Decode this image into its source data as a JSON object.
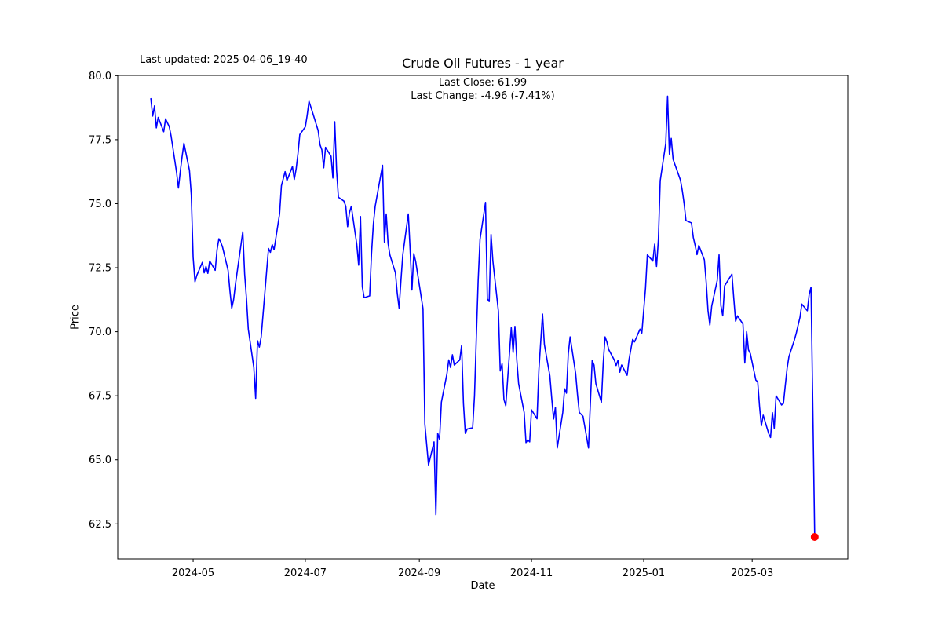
{
  "figure": {
    "annotation": "Last updated: 2025-04-06_19-40",
    "title": "Crude Oil Futures - 1 year",
    "subtitle_line1": "Last Close: 61.99",
    "subtitle_line2": "Last Change: -4.96 (-7.41%)",
    "xlabel": "Date",
    "ylabel": "Price",
    "last_close": "61.99",
    "last_change": "-4.96 (-7.41%)"
  },
  "chart_data": {
    "type": "line",
    "title": "Crude Oil Futures - 1 year",
    "xlabel": "Date",
    "ylabel": "Price",
    "legend": "none",
    "grid": false,
    "line_color": "#0000ff",
    "line_width": 1.6,
    "marker_color": "#ff0000",
    "axes_color": "#000000",
    "background_color": "#ffffff",
    "xlim": [
      "2024-03-21",
      "2025-04-22"
    ],
    "ylim": [
      61.13,
      80.01
    ],
    "yticks": [
      62.5,
      65.0,
      67.5,
      70.0,
      72.5,
      75.0,
      77.5,
      80.0
    ],
    "ytick_labels": [
      "62.5",
      "65.0",
      "67.5",
      "70.0",
      "72.5",
      "75.0",
      "77.5",
      "80.0"
    ],
    "xticks": [
      "2024-05-01",
      "2024-07-01",
      "2024-09-01",
      "2024-11-01",
      "2025-01-01",
      "2025-03-01"
    ],
    "xtick_labels": [
      "2024-05",
      "2024-07",
      "2024-09",
      "2024-11",
      "2025-01",
      "2025-03"
    ],
    "last_point": {
      "date": "2025-04-04",
      "value": 61.99
    },
    "series": [
      {
        "name": "price",
        "dates": [
          "2024-04-08",
          "2024-04-09",
          "2024-04-10",
          "2024-04-11",
          "2024-04-12",
          "2024-04-15",
          "2024-04-16",
          "2024-04-17",
          "2024-04-18",
          "2024-04-19",
          "2024-04-22",
          "2024-04-23",
          "2024-04-24",
          "2024-04-25",
          "2024-04-26",
          "2024-04-29",
          "2024-04-30",
          "2024-05-01",
          "2024-05-02",
          "2024-05-03",
          "2024-05-06",
          "2024-05-07",
          "2024-05-08",
          "2024-05-09",
          "2024-05-10",
          "2024-05-13",
          "2024-05-14",
          "2024-05-15",
          "2024-05-16",
          "2024-05-17",
          "2024-05-20",
          "2024-05-21",
          "2024-05-22",
          "2024-05-23",
          "2024-05-24",
          "2024-05-28",
          "2024-05-29",
          "2024-05-30",
          "2024-05-31",
          "2024-06-03",
          "2024-06-04",
          "2024-06-05",
          "2024-06-06",
          "2024-06-07",
          "2024-06-10",
          "2024-06-11",
          "2024-06-12",
          "2024-06-13",
          "2024-06-14",
          "2024-06-17",
          "2024-06-18",
          "2024-06-20",
          "2024-06-21",
          "2024-06-24",
          "2024-06-25",
          "2024-06-26",
          "2024-06-27",
          "2024-06-28",
          "2024-07-01",
          "2024-07-02",
          "2024-07-03",
          "2024-07-05",
          "2024-07-08",
          "2024-07-09",
          "2024-07-10",
          "2024-07-11",
          "2024-07-12",
          "2024-07-15",
          "2024-07-16",
          "2024-07-17",
          "2024-07-18",
          "2024-07-19",
          "2024-07-22",
          "2024-07-23",
          "2024-07-24",
          "2024-07-25",
          "2024-07-26",
          "2024-07-29",
          "2024-07-30",
          "2024-07-31",
          "2024-08-01",
          "2024-08-02",
          "2024-08-05",
          "2024-08-06",
          "2024-08-07",
          "2024-08-08",
          "2024-08-09",
          "2024-08-12",
          "2024-08-13",
          "2024-08-14",
          "2024-08-15",
          "2024-08-16",
          "2024-08-19",
          "2024-08-20",
          "2024-08-21",
          "2024-08-22",
          "2024-08-23",
          "2024-08-26",
          "2024-08-27",
          "2024-08-28",
          "2024-08-29",
          "2024-08-30",
          "2024-09-03",
          "2024-09-04",
          "2024-09-05",
          "2024-09-06",
          "2024-09-09",
          "2024-09-10",
          "2024-09-11",
          "2024-09-12",
          "2024-09-13",
          "2024-09-16",
          "2024-09-17",
          "2024-09-18",
          "2024-09-19",
          "2024-09-20",
          "2024-09-23",
          "2024-09-24",
          "2024-09-25",
          "2024-09-26",
          "2024-09-27",
          "2024-09-30",
          "2024-10-01",
          "2024-10-02",
          "2024-10-03",
          "2024-10-04",
          "2024-10-07",
          "2024-10-08",
          "2024-10-09",
          "2024-10-10",
          "2024-10-11",
          "2024-10-14",
          "2024-10-15",
          "2024-10-16",
          "2024-10-17",
          "2024-10-18",
          "2024-10-21",
          "2024-10-22",
          "2024-10-23",
          "2024-10-24",
          "2024-10-25",
          "2024-10-28",
          "2024-10-29",
          "2024-10-30",
          "2024-10-31",
          "2024-11-01",
          "2024-11-04",
          "2024-11-05",
          "2024-11-06",
          "2024-11-07",
          "2024-11-08",
          "2024-11-11",
          "2024-11-12",
          "2024-11-13",
          "2024-11-14",
          "2024-11-15",
          "2024-11-18",
          "2024-11-19",
          "2024-11-20",
          "2024-11-21",
          "2024-11-22",
          "2024-11-25",
          "2024-11-26",
          "2024-11-27",
          "2024-11-29",
          "2024-12-02",
          "2024-12-03",
          "2024-12-04",
          "2024-12-05",
          "2024-12-06",
          "2024-12-09",
          "2024-12-10",
          "2024-12-11",
          "2024-12-12",
          "2024-12-13",
          "2024-12-16",
          "2024-12-17",
          "2024-12-18",
          "2024-12-19",
          "2024-12-20",
          "2024-12-23",
          "2024-12-24",
          "2024-12-26",
          "2024-12-27",
          "2024-12-30",
          "2024-12-31",
          "2025-01-02",
          "2025-01-03",
          "2025-01-06",
          "2025-01-07",
          "2025-01-08",
          "2025-01-09",
          "2025-01-10",
          "2025-01-13",
          "2025-01-14",
          "2025-01-15",
          "2025-01-16",
          "2025-01-17",
          "2025-01-21",
          "2025-01-22",
          "2025-01-23",
          "2025-01-24",
          "2025-01-27",
          "2025-01-28",
          "2025-01-29",
          "2025-01-30",
          "2025-01-31",
          "2025-02-03",
          "2025-02-04",
          "2025-02-05",
          "2025-02-06",
          "2025-02-07",
          "2025-02-10",
          "2025-02-11",
          "2025-02-12",
          "2025-02-13",
          "2025-02-14",
          "2025-02-18",
          "2025-02-19",
          "2025-02-20",
          "2025-02-21",
          "2025-02-24",
          "2025-02-25",
          "2025-02-26",
          "2025-02-27",
          "2025-02-28",
          "2025-03-03",
          "2025-03-04",
          "2025-03-05",
          "2025-03-06",
          "2025-03-07",
          "2025-03-10",
          "2025-03-11",
          "2025-03-12",
          "2025-03-13",
          "2025-03-14",
          "2025-03-17",
          "2025-03-18",
          "2025-03-19",
          "2025-03-20",
          "2025-03-21",
          "2025-03-24",
          "2025-03-25",
          "2025-03-26",
          "2025-03-27",
          "2025-03-28",
          "2025-03-31",
          "2025-04-01",
          "2025-04-02",
          "2025-04-03",
          "2025-04-04"
        ],
        "values": [
          79.1,
          78.42,
          78.82,
          77.96,
          78.37,
          77.81,
          78.31,
          78.16,
          78.01,
          77.65,
          76.22,
          75.61,
          76.25,
          76.84,
          77.36,
          76.3,
          75.35,
          72.9,
          71.95,
          72.2,
          72.71,
          72.3,
          72.55,
          72.28,
          72.76,
          72.4,
          73.2,
          73.63,
          73.5,
          73.3,
          72.4,
          71.6,
          70.92,
          71.25,
          71.85,
          73.9,
          72.25,
          71.3,
          70.1,
          68.6,
          67.4,
          69.65,
          69.4,
          69.8,
          72.4,
          73.25,
          73.1,
          73.4,
          73.2,
          74.6,
          75.7,
          76.25,
          75.9,
          76.45,
          75.95,
          76.35,
          76.95,
          77.7,
          78.0,
          78.45,
          79.0,
          78.55,
          77.85,
          77.3,
          77.1,
          76.4,
          77.2,
          76.85,
          76.0,
          78.2,
          76.3,
          75.25,
          75.1,
          74.9,
          74.1,
          74.65,
          74.9,
          73.4,
          72.6,
          74.5,
          71.75,
          71.33,
          71.4,
          73.05,
          74.2,
          74.9,
          75.3,
          76.5,
          73.5,
          74.6,
          73.45,
          73.0,
          72.3,
          71.5,
          70.92,
          72.0,
          73.0,
          74.6,
          73.2,
          71.63,
          73.05,
          72.75,
          70.9,
          66.4,
          65.6,
          64.8,
          65.7,
          62.86,
          66.03,
          65.8,
          67.25,
          68.35,
          68.9,
          68.6,
          69.1,
          68.7,
          68.9,
          69.47,
          67.2,
          66.03,
          66.2,
          66.25,
          67.5,
          69.8,
          72.0,
          73.6,
          75.05,
          71.28,
          71.18,
          73.8,
          72.76,
          70.8,
          68.47,
          68.75,
          67.36,
          67.11,
          70.16,
          69.19,
          70.21,
          68.9,
          67.97,
          66.85,
          65.67,
          65.78,
          65.7,
          66.95,
          66.6,
          68.5,
          69.6,
          70.69,
          69.5,
          68.27,
          67.4,
          66.59,
          67.05,
          65.46,
          66.85,
          67.77,
          67.6,
          69.14,
          69.8,
          68.37,
          67.55,
          66.85,
          66.7,
          65.46,
          67.2,
          68.88,
          68.7,
          67.97,
          67.25,
          68.78,
          69.8,
          69.6,
          69.3,
          68.9,
          68.68,
          68.88,
          68.42,
          68.7,
          68.3,
          68.9,
          69.7,
          69.6,
          70.1,
          69.95,
          71.7,
          73.0,
          72.76,
          73.42,
          72.55,
          73.6,
          75.9,
          77.35,
          79.2,
          76.94,
          77.55,
          76.73,
          75.92,
          75.51,
          75.0,
          74.34,
          74.25,
          73.68,
          73.37,
          73.01,
          73.37,
          72.81,
          71.94,
          70.82,
          70.26,
          71.0,
          72.0,
          73.0,
          71.02,
          70.62,
          71.79,
          72.25,
          71.3,
          70.41,
          70.62,
          70.3,
          68.78,
          70.0,
          69.29,
          69.15,
          68.11,
          68.05,
          67.09,
          66.33,
          66.74,
          66.02,
          65.87,
          66.84,
          66.23,
          67.5,
          67.14,
          67.2,
          67.9,
          68.57,
          69.03,
          69.69,
          69.95,
          70.26,
          70.56,
          71.08,
          70.82,
          71.45,
          71.74,
          66.95,
          61.99
        ]
      }
    ]
  }
}
